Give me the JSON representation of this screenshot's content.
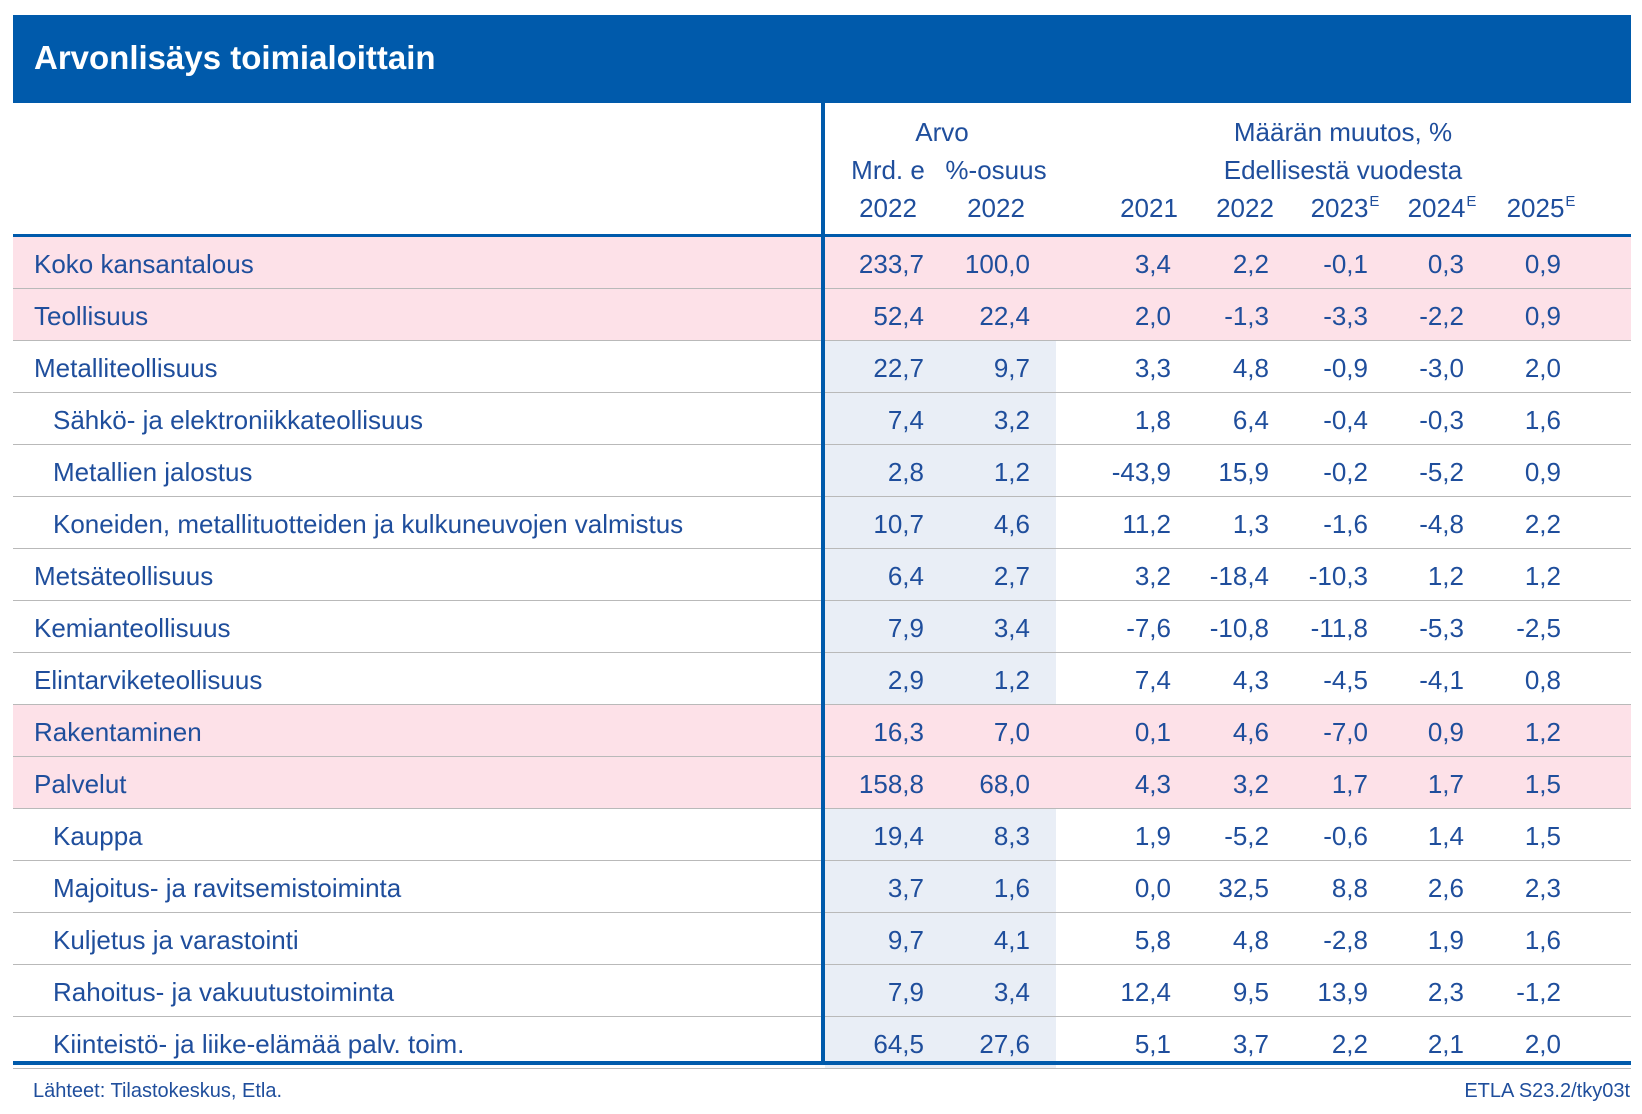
{
  "title": "Arvonlisäys toimialoittain",
  "header": {
    "group_arvo": "Arvo",
    "group_change_1": "Määrän muutos, %",
    "group_change_2": "Edellisestä vuodesta",
    "col_mrd_unit": "Mrd. e",
    "col_share_unit": "%-osuus",
    "col_mrd_year": "2022",
    "col_share_year": "2022",
    "col_2021": "2021",
    "col_2022": "2022",
    "col_2023": "2023",
    "col_2024": "2024",
    "col_2025": "2025",
    "estimate_mark": "E"
  },
  "rows": [
    {
      "label": "Koko kansantalous",
      "major": true,
      "indent": false,
      "values": [
        "233,7",
        "100,0",
        "3,4",
        "2,2",
        "-0,1",
        "0,3",
        "0,9"
      ]
    },
    {
      "label": "Teollisuus",
      "major": true,
      "indent": false,
      "values": [
        "52,4",
        "22,4",
        "2,0",
        "-1,3",
        "-3,3",
        "-2,2",
        "0,9"
      ]
    },
    {
      "label": "Metalliteollisuus",
      "major": false,
      "indent": false,
      "values": [
        "22,7",
        "9,7",
        "3,3",
        "4,8",
        "-0,9",
        "-3,0",
        "2,0"
      ]
    },
    {
      "label": "Sähkö- ja elektroniikkateollisuus",
      "major": false,
      "indent": true,
      "values": [
        "7,4",
        "3,2",
        "1,8",
        "6,4",
        "-0,4",
        "-0,3",
        "1,6"
      ]
    },
    {
      "label": "Metallien jalostus",
      "major": false,
      "indent": true,
      "values": [
        "2,8",
        "1,2",
        "-43,9",
        "15,9",
        "-0,2",
        "-5,2",
        "0,9"
      ]
    },
    {
      "label": "Koneiden, metallituotteiden ja kulkuneuvojen valmistus",
      "major": false,
      "indent": true,
      "values": [
        "10,7",
        "4,6",
        "11,2",
        "1,3",
        "-1,6",
        "-4,8",
        "2,2"
      ]
    },
    {
      "label": "Metsäteollisuus",
      "major": false,
      "indent": false,
      "values": [
        "6,4",
        "2,7",
        "3,2",
        "-18,4",
        "-10,3",
        "1,2",
        "1,2"
      ]
    },
    {
      "label": "Kemianteollisuus",
      "major": false,
      "indent": false,
      "values": [
        "7,9",
        "3,4",
        "-7,6",
        "-10,8",
        "-11,8",
        "-5,3",
        "-2,5"
      ]
    },
    {
      "label": "Elintarviketeollisuus",
      "major": false,
      "indent": false,
      "values": [
        "2,9",
        "1,2",
        "7,4",
        "4,3",
        "-4,5",
        "-4,1",
        "0,8"
      ]
    },
    {
      "label": "Rakentaminen",
      "major": true,
      "indent": false,
      "values": [
        "16,3",
        "7,0",
        "0,1",
        "4,6",
        "-7,0",
        "0,9",
        "1,2"
      ]
    },
    {
      "label": "Palvelut",
      "major": true,
      "indent": false,
      "values": [
        "158,8",
        "68,0",
        "4,3",
        "3,2",
        "1,7",
        "1,7",
        "1,5"
      ]
    },
    {
      "label": "Kauppa",
      "major": false,
      "indent": true,
      "values": [
        "19,4",
        "8,3",
        "1,9",
        "-5,2",
        "-0,6",
        "1,4",
        "1,5"
      ]
    },
    {
      "label": "Majoitus- ja ravitsemistoiminta",
      "major": false,
      "indent": true,
      "values": [
        "3,7",
        "1,6",
        "0,0",
        "32,5",
        "8,8",
        "2,6",
        "2,3"
      ]
    },
    {
      "label": "Kuljetus ja varastointi",
      "major": false,
      "indent": true,
      "values": [
        "9,7",
        "4,1",
        "5,8",
        "4,8",
        "-2,8",
        "1,9",
        "1,6"
      ]
    },
    {
      "label": "Rahoitus- ja vakuutustoiminta",
      "major": false,
      "indent": true,
      "values": [
        "7,9",
        "3,4",
        "12,4",
        "9,5",
        "13,9",
        "2,3",
        "-1,2"
      ]
    },
    {
      "label": "Kiinteistö- ja liike-elämää palv. toim.",
      "major": false,
      "indent": true,
      "values": [
        "64,5",
        "27,6",
        "5,1",
        "3,7",
        "2,2",
        "2,1",
        "2,0"
      ]
    }
  ],
  "footer": {
    "source": "Lähteet: Tilastokeskus, Etla.",
    "code": "ETLA S23.2/tky03t"
  }
}
